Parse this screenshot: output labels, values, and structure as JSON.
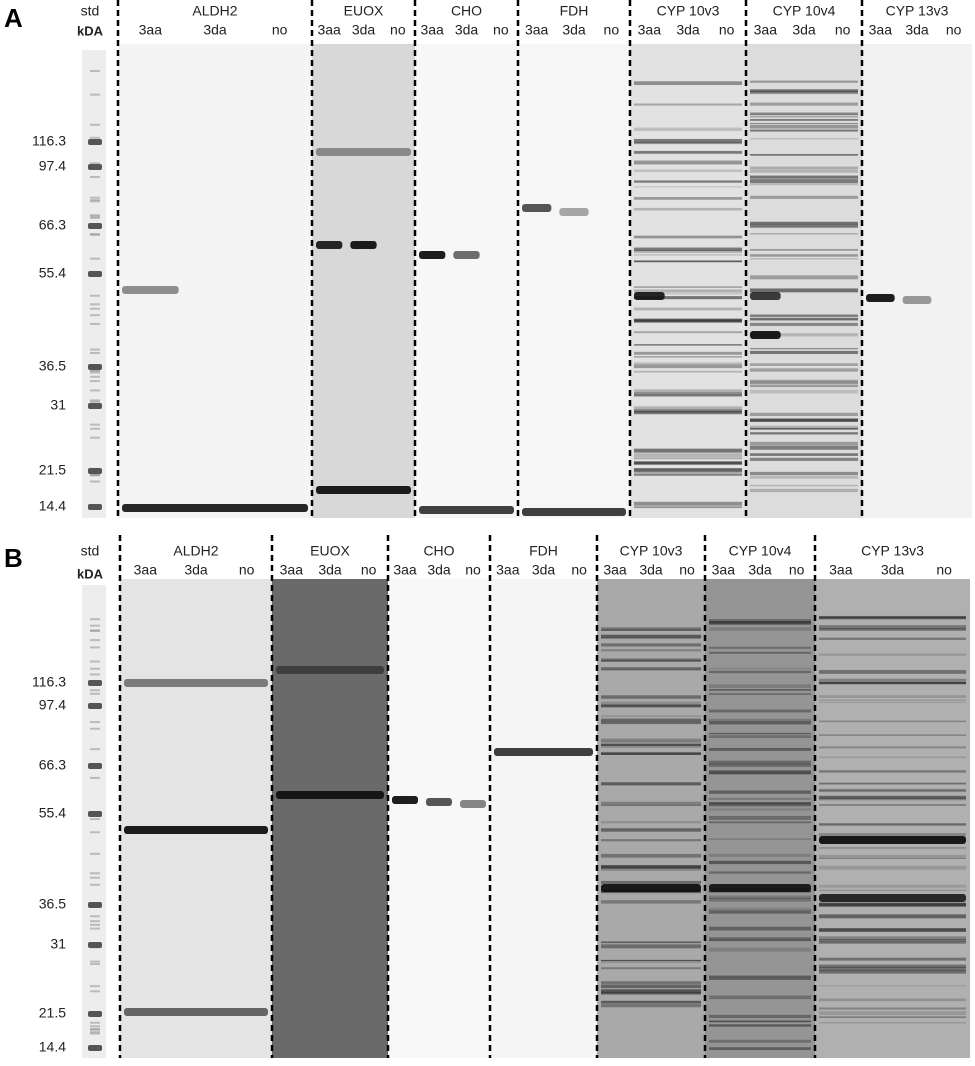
{
  "panels": [
    {
      "label": "A",
      "std": "std",
      "unit": "kDA",
      "markers": [
        116.3,
        97.4,
        66.3,
        55.4,
        36.5,
        31,
        21.5,
        14.4
      ],
      "groups": [
        {
          "name": "ALDH2",
          "lanes": [
            "3aa",
            "3da",
            "no"
          ]
        },
        {
          "name": "EUOX",
          "lanes": [
            "3aa",
            "3da",
            "no"
          ]
        },
        {
          "name": "CHO",
          "lanes": [
            "3aa",
            "3da",
            "no"
          ]
        },
        {
          "name": "FDH",
          "lanes": [
            "3aa",
            "3da",
            "no"
          ]
        },
        {
          "name": "CYP 10v3",
          "lanes": [
            "3aa",
            "3da",
            "no"
          ]
        },
        {
          "name": "CYP 10v4",
          "lanes": [
            "3aa",
            "3da",
            "no"
          ]
        },
        {
          "name": "CYP 13v3",
          "lanes": [
            "3aa",
            "3da",
            "no"
          ]
        }
      ]
    },
    {
      "label": "B",
      "std": "std",
      "unit": "kDA",
      "markers": [
        116.3,
        97.4,
        66.3,
        55.4,
        36.5,
        31,
        21.5,
        14.4
      ],
      "groups": [
        {
          "name": "ALDH2",
          "lanes": [
            "3aa",
            "3da",
            "no"
          ]
        },
        {
          "name": "EUOX",
          "lanes": [
            "3aa",
            "3da",
            "no"
          ]
        },
        {
          "name": "CHO",
          "lanes": [
            "3aa",
            "3da",
            "no"
          ]
        },
        {
          "name": "FDH",
          "lanes": [
            "3aa",
            "3da",
            "no"
          ]
        },
        {
          "name": "CYP 10v3",
          "lanes": [
            "3aa",
            "3da",
            "no"
          ]
        },
        {
          "name": "CYP 10v4",
          "lanes": [
            "3aa",
            "3da",
            "no"
          ]
        },
        {
          "name": "CYP 13v3",
          "lanes": [
            "3aa",
            "3da",
            "no"
          ]
        }
      ]
    }
  ]
}
